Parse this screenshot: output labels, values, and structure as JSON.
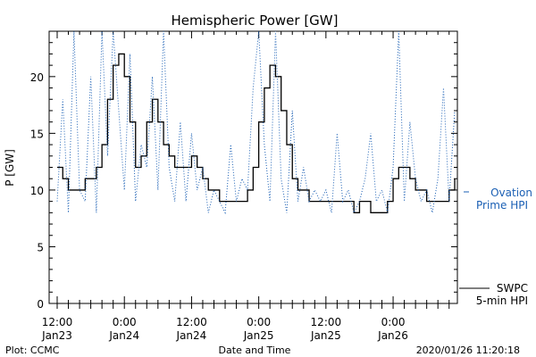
{
  "chart_data": {
    "type": "line",
    "title": "Hemispheric Power [GW]",
    "xlabel": "Date and Time",
    "ylabel": "P [GW]",
    "ylim": [
      0,
      24
    ],
    "yticks": [
      0,
      5,
      10,
      15,
      20
    ],
    "x_tick_labels": [
      {
        "time": "12:00",
        "date": "Jan23",
        "hour": 0
      },
      {
        "time": "0:00",
        "date": "Jan24",
        "hour": 12
      },
      {
        "time": "12:00",
        "date": "Jan24",
        "hour": 24
      },
      {
        "time": "0:00",
        "date": "Jan25",
        "hour": 36
      },
      {
        "time": "12:00",
        "date": "Jan25",
        "hour": 48
      },
      {
        "time": "0:00",
        "date": "Jan26",
        "hour": 60
      }
    ],
    "xlim_hours": [
      0,
      71
    ],
    "series": [
      {
        "name": "SWPC 5-min HPI",
        "style": "solid",
        "color": "#000000",
        "x": [
          0,
          1,
          2,
          3,
          4,
          5,
          6,
          7,
          8,
          9,
          10,
          11,
          12,
          13,
          14,
          15,
          16,
          17,
          18,
          19,
          20,
          21,
          22,
          23,
          24,
          25,
          26,
          27,
          28,
          29,
          30,
          31,
          32,
          33,
          34,
          35,
          36,
          37,
          38,
          39,
          40,
          41,
          42,
          43,
          44,
          45,
          46,
          47,
          48,
          49,
          50,
          51,
          52,
          53,
          54,
          55,
          56,
          57,
          58,
          59,
          60,
          61,
          62,
          63,
          64,
          65,
          66,
          67,
          68,
          69,
          70,
          71
        ],
        "y": [
          12,
          11,
          10,
          10,
          10,
          11,
          11,
          12,
          14,
          18,
          21,
          22,
          20,
          16,
          12,
          13,
          16,
          18,
          16,
          14,
          13,
          12,
          12,
          12,
          13,
          12,
          11,
          10,
          10,
          9,
          9,
          9,
          9,
          9,
          10,
          12,
          16,
          19,
          21,
          20,
          17,
          14,
          11,
          10,
          10,
          9,
          9,
          9,
          9,
          9,
          9,
          9,
          9,
          8,
          9,
          9,
          8,
          8,
          8,
          9,
          11,
          12,
          12,
          11,
          10,
          10,
          9,
          9,
          9,
          9,
          10,
          11
        ]
      },
      {
        "name": "Ovation Prime HPI",
        "style": "dotted",
        "color": "#1a5fb4",
        "x": [
          0,
          1,
          2,
          3,
          4,
          5,
          6,
          7,
          8,
          9,
          10,
          11,
          12,
          13,
          14,
          15,
          16,
          17,
          18,
          19,
          20,
          21,
          22,
          23,
          24,
          25,
          26,
          27,
          28,
          29,
          30,
          31,
          32,
          33,
          34,
          35,
          36,
          37,
          38,
          39,
          40,
          41,
          42,
          43,
          44,
          45,
          46,
          47,
          48,
          49,
          50,
          51,
          52,
          53,
          54,
          55,
          56,
          57,
          58,
          59,
          60,
          61,
          62,
          63,
          64,
          65,
          66,
          67,
          68,
          69,
          70,
          71
        ],
        "y": [
          9,
          18,
          8,
          24,
          10,
          9,
          20,
          8,
          24,
          13,
          24,
          17,
          10,
          22,
          9,
          14,
          12,
          20,
          10,
          24,
          12,
          9,
          16,
          9,
          15,
          10,
          12,
          8,
          10,
          9,
          8,
          14,
          9,
          11,
          10,
          19,
          24,
          14,
          9,
          24,
          11,
          8,
          17,
          9,
          12,
          9,
          10,
          9,
          10,
          8,
          15,
          9,
          10,
          8,
          9,
          11,
          15,
          9,
          10,
          8,
          12,
          24,
          9,
          16,
          11,
          9,
          10,
          8,
          11,
          19,
          9,
          17
        ]
      }
    ],
    "legend": {
      "ovation_line1": "Ovation",
      "ovation_line2": "Prime HPI",
      "swpc_line1": "SWPC",
      "swpc_line2": "5-min HPI"
    }
  },
  "footer": {
    "plot_credit": "Plot: CCMC",
    "timestamp": "2020/01/26 11:20:18"
  }
}
